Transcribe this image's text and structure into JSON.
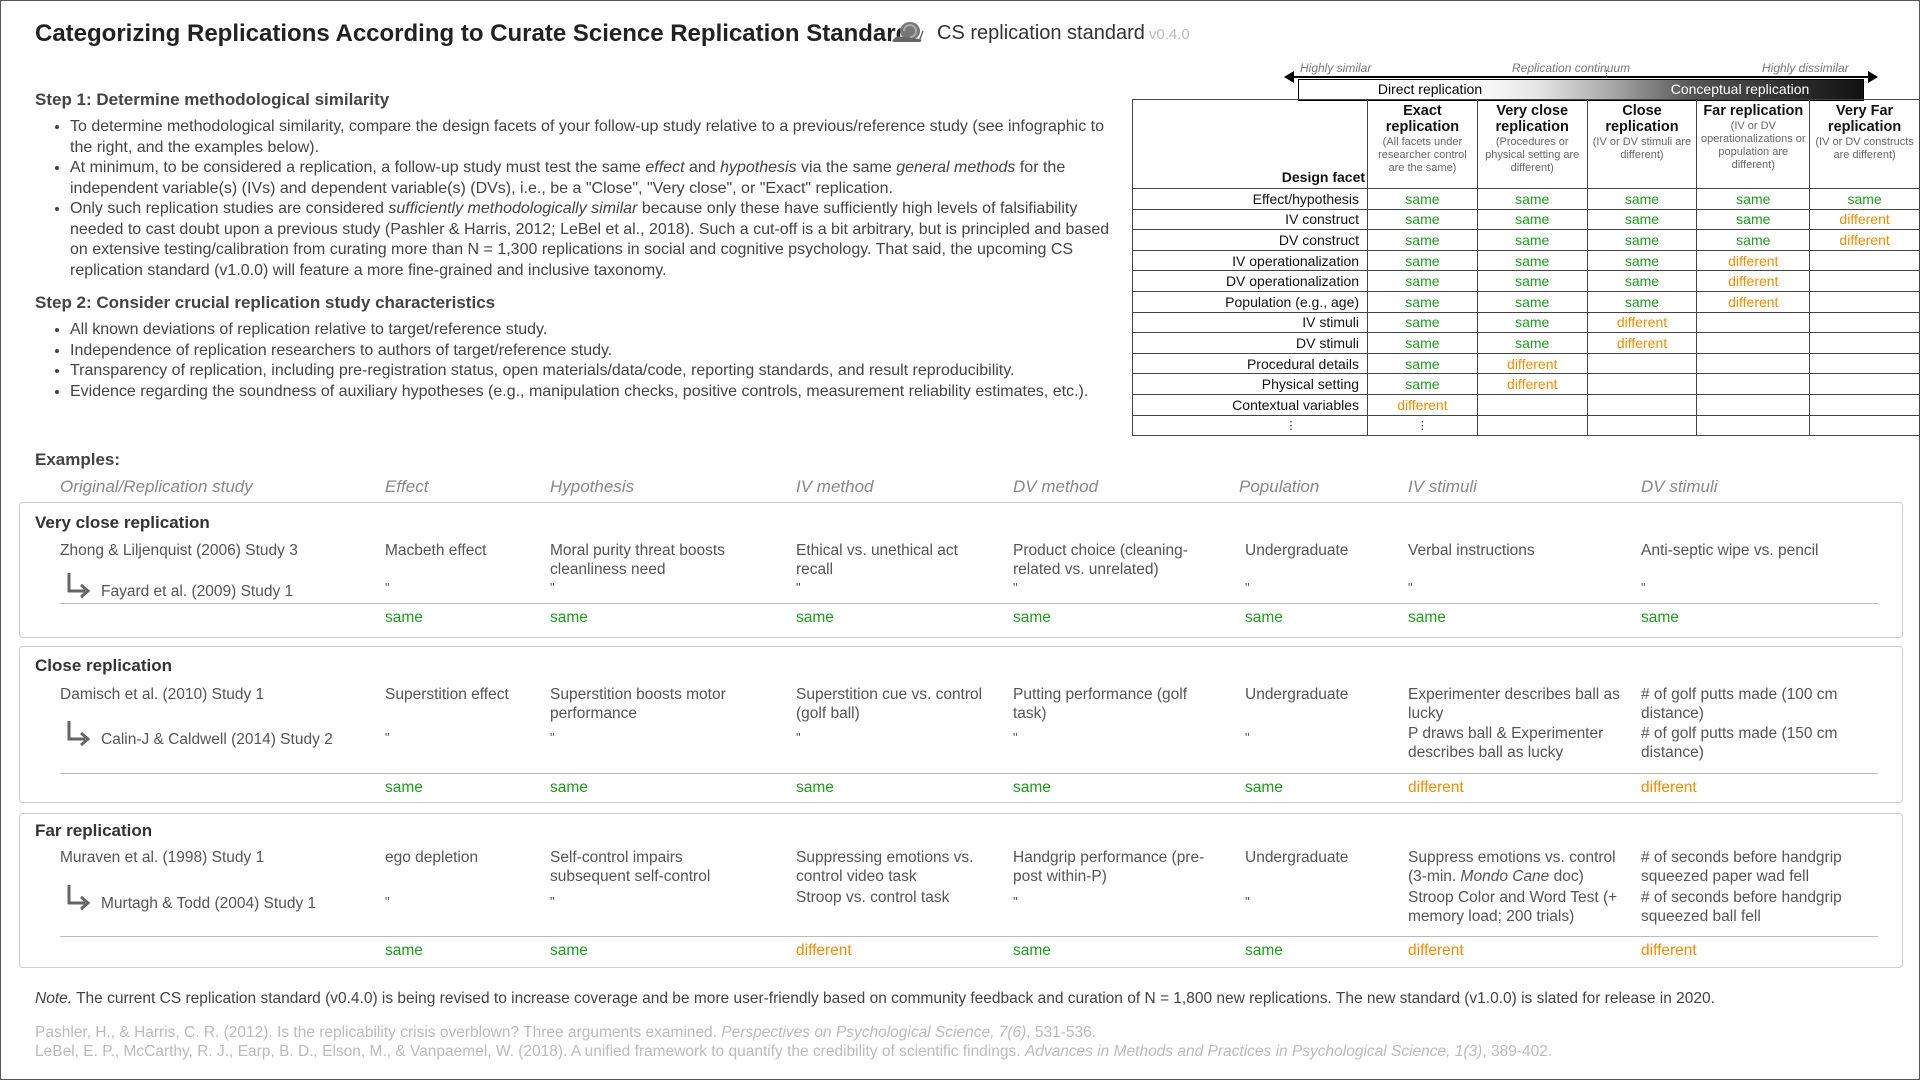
{
  "header": {
    "title": "Categorizing Replications According to Curate Science Replication Standard",
    "brand": "CS replication standard",
    "version": "v0.4.0"
  },
  "step1": {
    "heading": "Step 1: Determine methodological similarity",
    "b1": "To determine methodological similarity, compare the design facets of your follow-up study relative to a previous/reference study (see infographic to the right, and the examples below).",
    "b2_pre": "At minimum, to be considered a replication, a follow-up study must test the same ",
    "b2_effect": "effect",
    "b2_and": " and ",
    "b2_hyp": "hypothesis",
    "b2_mid": " via the same ",
    "b2_gm": "general methods",
    "b2_post": " for the independent variable(s) (IVs) and dependent variable(s) (DVs), i.e., be a \"Close\", \"Very close\", or \"Exact\" replication.",
    "b3_pre": "Only such replication studies are considered ",
    "b3_em": "sufficiently methodologically similar",
    "b3_post": " because only these have sufficiently high levels of falsifiability needed to cast doubt upon a previous study (Pashler & Harris, 2012; LeBel et al., 2018).  Such a cut-off is a bit arbitrary, but is principled and based on extensive testing/calibration from curating more than N = 1,300 replications in social and cognitive psychology. That said, the upcoming CS replication standard (v1.0.0) will feature a more fine-grained and inclusive taxonomy."
  },
  "step2": {
    "heading": "Step 2: Consider crucial replication study characteristics",
    "b1": "All known deviations of replication relative to target/reference study.",
    "b2": "Independence of replication researchers to authors of target/reference study.",
    "b3": "Transparency of replication, including pre-registration status, open materials/data/code, reporting standards, and result reproducibility.",
    "b4": "Evidence regarding the soundness of auxiliary hypotheses (e.g., manipulation checks, positive controls, measurement reliability estimates, etc.)."
  },
  "continuum": {
    "left": "Highly similar",
    "middle": "Replication continuum",
    "right": "Highly dissimilar",
    "direct": "Direct replication",
    "conceptual": "Conceptual replication"
  },
  "facet_table": {
    "facet_header": "Design facet",
    "levels": [
      {
        "name": "Exact replication",
        "sub": "(All facets under researcher control are the same)"
      },
      {
        "name": "Very close replication",
        "sub": "(Procedures or physical setting are different)"
      },
      {
        "name": "Close replication",
        "sub": "(IV or DV stimuli are different)"
      },
      {
        "name": "Far replication",
        "sub": "(IV or DV operationalizations or population are different)"
      },
      {
        "name": "Very Far replication",
        "sub": "(IV or DV constructs are different)"
      }
    ],
    "rows": [
      {
        "facet": "Effect/hypothesis",
        "cells": [
          "same",
          "same",
          "same",
          "same",
          "same"
        ]
      },
      {
        "facet": "IV construct",
        "cells": [
          "same",
          "same",
          "same",
          "same",
          "different"
        ]
      },
      {
        "facet": "DV construct",
        "cells": [
          "same",
          "same",
          "same",
          "same",
          "different"
        ]
      },
      {
        "facet": "IV operationalization",
        "cells": [
          "same",
          "same",
          "same",
          "different",
          ""
        ]
      },
      {
        "facet": "DV operationalization",
        "cells": [
          "same",
          "same",
          "same",
          "different",
          ""
        ]
      },
      {
        "facet": "Population (e.g., age)",
        "cells": [
          "same",
          "same",
          "same",
          "different",
          ""
        ]
      },
      {
        "facet": "IV stimuli",
        "cells": [
          "same",
          "same",
          "different",
          "",
          ""
        ]
      },
      {
        "facet": "DV stimuli",
        "cells": [
          "same",
          "same",
          "different",
          "",
          ""
        ]
      },
      {
        "facet": "Procedural details",
        "cells": [
          "same",
          "different",
          "",
          "",
          ""
        ]
      },
      {
        "facet": "Physical setting",
        "cells": [
          "same",
          "different",
          "",
          "",
          ""
        ]
      },
      {
        "facet": "Contextual variables",
        "cells": [
          "different",
          "",
          "",
          "",
          ""
        ]
      },
      {
        "facet": "⋮",
        "cells": [
          "⋮",
          "",
          "",
          "",
          ""
        ]
      }
    ]
  },
  "examples": {
    "heading": "Examples:",
    "columns": [
      "Original/Replication study",
      "Effect",
      "Hypothesis",
      "IV method",
      "DV method",
      "Population",
      "IV stimuli",
      "DV stimuli"
    ],
    "groups": [
      {
        "category": "Very close replication",
        "original": "Zhong & Liljenquist (2006) Study 3",
        "replication": "Fayard et al. (2009) Study 1",
        "orig_cells": [
          "Macbeth effect",
          "Moral purity threat boosts cleanliness need",
          "Ethical vs. unethical act recall",
          "Product choice (cleaning-related vs. unrelated)",
          "Undergraduate",
          "Verbal instructions",
          "Anti-septic wipe vs. pencil"
        ],
        "rep_cells": [
          "\"",
          "\"",
          "\"",
          "\"",
          "\"",
          "\"",
          "\""
        ],
        "results": [
          "same",
          "same",
          "same",
          "same",
          "same",
          "same",
          "same"
        ]
      },
      {
        "category": "Close replication",
        "original": "Damisch et al. (2010) Study 1",
        "replication": "Calin-J & Caldwell (2014) Study 2",
        "orig_cells": [
          "Superstition effect",
          "Superstition boosts motor performance",
          "Superstition cue vs. control (golf ball)",
          "Putting performance (golf task)",
          "Undergraduate",
          "Experimenter describes ball as lucky",
          "# of golf putts made (100 cm distance)"
        ],
        "rep_cells": [
          "\"",
          "\"",
          "\"",
          "\"",
          "\"",
          "P draws ball & Experimenter describes ball as lucky",
          "# of golf putts made (150 cm distance)"
        ],
        "results": [
          "same",
          "same",
          "same",
          "same",
          "same",
          "different",
          "different"
        ]
      },
      {
        "category": "Far replication",
        "original": "Muraven et al. (1998) Study 1",
        "replication": "Murtagh & Todd (2004) Study 1",
        "orig_cells": [
          "ego depletion",
          "Self-control impairs subsequent self-control",
          "Suppressing emotions vs. control video task",
          "Handgrip performance (pre-post within-P)",
          "Undergraduate",
          "",
          "# of seconds before handgrip squeezed paper wad fell"
        ],
        "ivstim_pre": "Suppress emotions vs. control (3-min. ",
        "ivstim_em": "Mondo Cane",
        "ivstim_post": " doc)",
        "rep_cells": [
          "\"",
          "\"",
          "Stroop vs. control task",
          "\"",
          "\"",
          "Stroop Color and Word Test (+ memory load; 200 trials)",
          "# of seconds before handgrip squeezed ball fell"
        ],
        "results": [
          "same",
          "same",
          "different",
          "same",
          "same",
          "different",
          "different"
        ]
      }
    ]
  },
  "note": {
    "label": "Note.",
    "text": " The current CS replication standard (v0.4.0) is being revised to increase coverage and be more user-friendly based on community feedback and curation of N = 1,800 new replications. The new standard (v1.0.0) is slated for release in 2020."
  },
  "references": [
    {
      "pre": "Pashler, H., & Harris, C. R. (2012). Is the replicability crisis overblown? Three arguments examined. ",
      "em": "Perspectives on Psychological Science, 7(6)",
      "post": ", 531-536."
    },
    {
      "pre": "LeBel, E. P., McCarthy, R. J., Earp, B. D., Elson, M., & Vanpaemel, W. (2018). A unified framework to quantify the credibility of scientific findings. ",
      "em": "Advances in Methods and Practices in Psychological Science, 1(3)",
      "post": ", 389-402."
    }
  ],
  "colors": {
    "same": "#1e9b1e",
    "different": "#f28c00"
  }
}
